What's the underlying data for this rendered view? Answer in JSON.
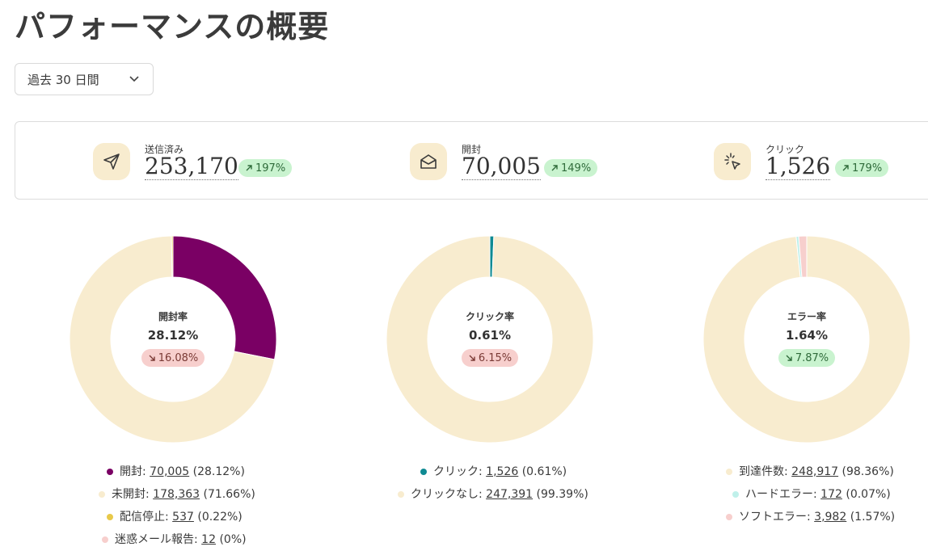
{
  "page": {
    "title": "パフォーマンスの概要"
  },
  "period_select": {
    "value": "過去 30 日間"
  },
  "stats": [
    {
      "label": "送信済み",
      "value": "253,170",
      "change": "197%",
      "direction": "up",
      "icon": "send-icon"
    },
    {
      "label": "開封",
      "value": "70,005",
      "change": "149%",
      "direction": "up",
      "icon": "envelope-open-icon"
    },
    {
      "label": "クリック",
      "value": "1,526",
      "change": "179%",
      "direction": "up",
      "icon": "click-pointer-icon"
    }
  ],
  "donuts": [
    {
      "center_title": "開封率",
      "center_value": "28.12%",
      "change": "16.08%",
      "direction": "down",
      "segments": [
        {
          "label": "開封",
          "value": "70,005",
          "pct": "(28.12%)",
          "fraction": 0.2812,
          "color": "#7a0064"
        },
        {
          "label": "未開封",
          "value": "178,363",
          "pct": "(71.66%)",
          "fraction": 0.7166,
          "color": "#f8eccf"
        },
        {
          "label": "配信停止",
          "value": "537",
          "pct": "(0.22%)",
          "fraction": 0.0022,
          "color": "#e8c94a"
        },
        {
          "label": "迷惑メール報告",
          "value": "12",
          "pct": "(0%)",
          "fraction": 0.0,
          "color": "#f7cfcd"
        }
      ]
    },
    {
      "center_title": "クリック率",
      "center_value": "0.61%",
      "change": "6.15%",
      "direction": "down",
      "segments": [
        {
          "label": "クリック",
          "value": "1,526",
          "pct": "(0.61%)",
          "fraction": 0.0061,
          "color": "#0f8a93"
        },
        {
          "label": "クリックなし",
          "value": "247,391",
          "pct": "(99.39%)",
          "fraction": 0.9939,
          "color": "#f8eccf"
        }
      ]
    },
    {
      "center_title": "エラー率",
      "center_value": "1.64%",
      "change": "7.87%",
      "direction": "up",
      "segments": [
        {
          "label": "到達件数",
          "value": "248,917",
          "pct": "(98.36%)",
          "fraction": 0.9836,
          "color": "#f8eccf"
        },
        {
          "label": "ハードエラー",
          "value": "172",
          "pct": "(0.07%)",
          "fraction": 0.0007,
          "color": "#bff0ea"
        },
        {
          "label": "ソフトエラー",
          "value": "3,982",
          "pct": "(1.57%)",
          "fraction": 0.0157,
          "color": "#f7cfcd"
        }
      ]
    }
  ]
}
